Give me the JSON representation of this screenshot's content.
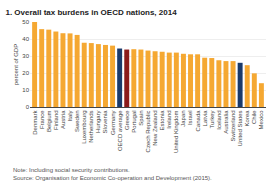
{
  "chart_data": {
    "type": "bar",
    "title": "1. Overall tax burdens in OECD nations, 2014",
    "ylabel": "percent of GDP",
    "annotations": [
      "Note: Including social security contributions.\nSource: Organisation for Economic Co-operation and Development (2015)."
    ],
    "categories": [
      "Denmark",
      "France",
      "Belgium",
      "Finland",
      "Austria",
      "Italy",
      "Sweden",
      "Luxembourg",
      "Netherlands",
      "Hungary",
      "Slovenia",
      "Germany",
      "OECD average",
      "Greece",
      "Portugal",
      "Spain",
      "Czech Republic",
      "New Zealand",
      "Estonia",
      "Ireland",
      "United Kingdom",
      "Japan",
      "Israel",
      "Canada",
      "Latvia",
      "Turkey",
      "Iceland",
      "Australia",
      "Switzerland",
      "United States",
      "Korea",
      "Chile",
      "Mexico"
    ],
    "values": [
      50.0,
      45.8,
      45.5,
      44.4,
      43.4,
      43.3,
      42.4,
      37.8,
      37.6,
      37.0,
      36.5,
      36.1,
      34.4,
      33.8,
      34.0,
      33.8,
      33.2,
      32.8,
      32.5,
      32.0,
      32.0,
      31.3,
      31.0,
      31.0,
      29.0,
      28.8,
      27.5,
      27.0,
      27.0,
      26.0,
      24.6,
      19.8,
      14.0
    ],
    "colors": [
      "#F5A832",
      "#F5A832",
      "#F5A832",
      "#F5A832",
      "#F5A832",
      "#F5A832",
      "#F5A832",
      "#F5A832",
      "#F5A832",
      "#F5A832",
      "#F5A832",
      "#F5A832",
      "#1A3A6B",
      "#8B1A1A",
      "#F5A832",
      "#F5A832",
      "#F5A832",
      "#F5A832",
      "#F5A832",
      "#F5A832",
      "#F5A832",
      "#F5A832",
      "#F5A832",
      "#F5A832",
      "#F5A832",
      "#F5A832",
      "#F5A832",
      "#F5A832",
      "#F5A832",
      "#1A3A6B",
      "#F5A832",
      "#F5A832",
      "#F5A832"
    ],
    "ylim": [
      0,
      50
    ],
    "yticks": [
      0,
      10,
      20,
      30,
      40,
      50
    ],
    "grid": true
  }
}
